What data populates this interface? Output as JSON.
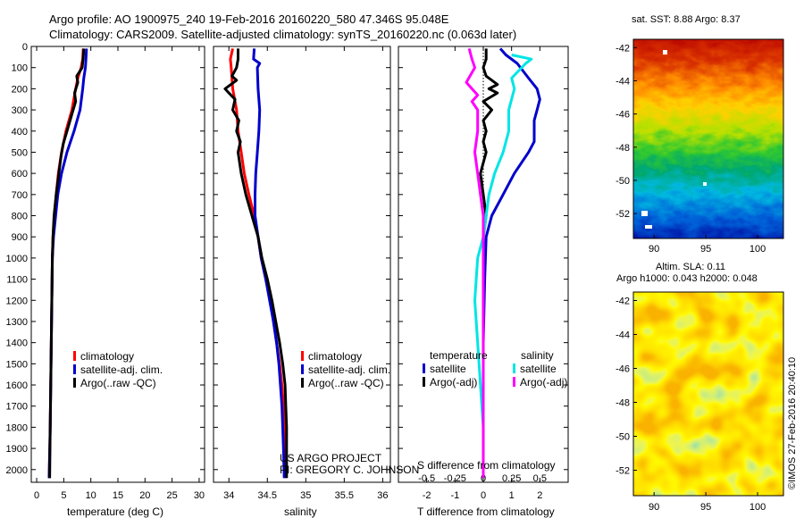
{
  "header": {
    "line1": "Argo profile: AO 1900975_240 19-Feb-2016 20160220_580 47.346S 95.048E",
    "line2": "Climatology: CARS2009. Satellite-adjusted climatology: synTS_20160220.nc (0.063d later)"
  },
  "depth_ticks": [
    0,
    100,
    200,
    300,
    400,
    500,
    600,
    700,
    800,
    900,
    1000,
    1100,
    1200,
    1300,
    1400,
    1500,
    1600,
    1700,
    1800,
    1900,
    2000
  ],
  "chart_data": [
    {
      "id": "temperature",
      "type": "line",
      "xlabel": "temperature (deg C)",
      "xlim": [
        -1,
        31
      ],
      "ylim": [
        2060,
        0
      ],
      "xticks": [
        0,
        5,
        10,
        15,
        20,
        25,
        30
      ],
      "legend": [
        "climatology",
        "satellite-adj. clim.",
        "Argo(..raw -QC)"
      ],
      "series": [
        {
          "name": "climatology",
          "color": "#ff0000",
          "points": [
            [
              8.6,
              10
            ],
            [
              8.5,
              60
            ],
            [
              8.2,
              100
            ],
            [
              7.6,
              150
            ],
            [
              7.2,
              200
            ],
            [
              6.5,
              300
            ],
            [
              5.4,
              400
            ],
            [
              4.6,
              500
            ],
            [
              4.0,
              600
            ],
            [
              3.6,
              700
            ],
            [
              3.3,
              800
            ],
            [
              3.0,
              900
            ],
            [
              2.9,
              1000
            ],
            [
              2.8,
              1200
            ],
            [
              2.7,
              1400
            ],
            [
              2.6,
              1600
            ],
            [
              2.5,
              1800
            ],
            [
              2.3,
              2040
            ]
          ]
        },
        {
          "name": "satellite-adj. clim.",
          "color": "#0000cc",
          "points": [
            [
              9.2,
              10
            ],
            [
              9.1,
              60
            ],
            [
              9.0,
              100
            ],
            [
              8.7,
              150
            ],
            [
              8.5,
              200
            ],
            [
              8.0,
              300
            ],
            [
              6.9,
              400
            ],
            [
              5.6,
              500
            ],
            [
              4.6,
              600
            ],
            [
              3.9,
              700
            ],
            [
              3.5,
              800
            ],
            [
              3.1,
              900
            ],
            [
              2.9,
              1000
            ],
            [
              2.8,
              1200
            ],
            [
              2.7,
              1400
            ],
            [
              2.6,
              1600
            ],
            [
              2.5,
              1800
            ],
            [
              2.3,
              2040
            ]
          ]
        },
        {
          "name": "Argo(..raw -QC)",
          "color": "#000000",
          "points": [
            [
              8.7,
              10
            ],
            [
              8.6,
              50
            ],
            [
              8.4,
              100
            ],
            [
              7.4,
              140
            ],
            [
              7.6,
              170
            ],
            [
              7.0,
              220
            ],
            [
              7.2,
              260
            ],
            [
              6.5,
              320
            ],
            [
              5.6,
              400
            ],
            [
              4.9,
              460
            ],
            [
              4.5,
              520
            ],
            [
              4.1,
              600
            ],
            [
              3.6,
              700
            ],
            [
              3.2,
              800
            ],
            [
              3.0,
              900
            ],
            [
              2.9,
              1000
            ],
            [
              2.8,
              1200
            ],
            [
              2.7,
              1400
            ],
            [
              2.6,
              1600
            ],
            [
              2.5,
              1800
            ],
            [
              2.4,
              2040
            ]
          ]
        }
      ]
    },
    {
      "id": "salinity",
      "type": "line",
      "xlabel": "salinity",
      "xlim": [
        33.8,
        36.1
      ],
      "ylim": [
        2060,
        0
      ],
      "xticks": [
        34,
        34.5,
        35,
        35.5,
        36
      ],
      "legend": [
        "climatology",
        "satellite-adj. clim.",
        "Argo(..raw -QC)"
      ],
      "annotation": [
        "US ARGO PROJECT",
        "PI: GREGORY C. JOHNSON"
      ],
      "series": [
        {
          "name": "climatology",
          "color": "#ff0000",
          "points": [
            [
              34.05,
              10
            ],
            [
              34.02,
              60
            ],
            [
              34.03,
              100
            ],
            [
              34.05,
              200
            ],
            [
              34.1,
              300
            ],
            [
              34.12,
              400
            ],
            [
              34.16,
              500
            ],
            [
              34.2,
              600
            ],
            [
              34.26,
              700
            ],
            [
              34.33,
              800
            ],
            [
              34.38,
              900
            ],
            [
              34.42,
              1000
            ],
            [
              34.48,
              1100
            ],
            [
              34.54,
              1200
            ],
            [
              34.58,
              1300
            ],
            [
              34.62,
              1400
            ],
            [
              34.66,
              1500
            ],
            [
              34.69,
              1600
            ],
            [
              34.71,
              1700
            ],
            [
              34.72,
              1800
            ],
            [
              34.73,
              1900
            ],
            [
              34.74,
              2040
            ]
          ]
        },
        {
          "name": "satellite-adj. clim.",
          "color": "#0000cc",
          "points": [
            [
              34.33,
              10
            ],
            [
              34.32,
              60
            ],
            [
              34.4,
              80
            ],
            [
              34.37,
              100
            ],
            [
              34.38,
              200
            ],
            [
              34.4,
              300
            ],
            [
              34.39,
              400
            ],
            [
              34.37,
              500
            ],
            [
              34.35,
              600
            ],
            [
              34.34,
              700
            ],
            [
              34.34,
              800
            ],
            [
              34.38,
              900
            ],
            [
              34.42,
              1000
            ],
            [
              34.48,
              1100
            ],
            [
              34.53,
              1200
            ],
            [
              34.58,
              1300
            ],
            [
              34.62,
              1400
            ],
            [
              34.65,
              1500
            ],
            [
              34.67,
              1600
            ],
            [
              34.69,
              1700
            ],
            [
              34.7,
              1800
            ],
            [
              34.71,
              1900
            ],
            [
              34.72,
              2040
            ]
          ]
        },
        {
          "name": "Argo(..raw -QC)",
          "color": "#000000",
          "points": [
            [
              34.12,
              10
            ],
            [
              34.12,
              60
            ],
            [
              34.1,
              100
            ],
            [
              34.04,
              140
            ],
            [
              34.1,
              160
            ],
            [
              33.95,
              200
            ],
            [
              34.0,
              220
            ],
            [
              34.08,
              250
            ],
            [
              34.05,
              300
            ],
            [
              34.13,
              350
            ],
            [
              34.1,
              400
            ],
            [
              34.15,
              450
            ],
            [
              34.12,
              500
            ],
            [
              34.16,
              600
            ],
            [
              34.22,
              700
            ],
            [
              34.3,
              800
            ],
            [
              34.38,
              900
            ],
            [
              34.43,
              1000
            ],
            [
              34.5,
              1100
            ],
            [
              34.56,
              1200
            ],
            [
              34.61,
              1300
            ],
            [
              34.66,
              1400
            ],
            [
              34.7,
              1500
            ],
            [
              34.73,
              1600
            ],
            [
              34.74,
              1700
            ],
            [
              34.75,
              1800
            ],
            [
              34.75,
              1900
            ],
            [
              34.75,
              2040
            ]
          ]
        }
      ]
    },
    {
      "id": "difference",
      "type": "line",
      "xlabel": "T difference from climatology",
      "secondary_label": "S difference from climatology",
      "xlim": [
        -3,
        3
      ],
      "ylim": [
        2060,
        0
      ],
      "xticks": [
        -2,
        -1,
        0,
        1,
        2
      ],
      "secondary_ticks": [
        "-0.5",
        "-0.25",
        "0",
        "0.25",
        "0.5"
      ],
      "legend_groups": [
        {
          "title": "temperature",
          "items": [
            "satellite",
            "Argo(-adj)"
          ]
        },
        {
          "title": "salinity",
          "items": [
            "satellite",
            "Argo(-adj)"
          ]
        }
      ],
      "series": [
        {
          "name": "temperature satellite",
          "color": "#0000cc",
          "points": [
            [
              0.6,
              10
            ],
            [
              0.8,
              40
            ],
            [
              1.2,
              80
            ],
            [
              1.6,
              150
            ],
            [
              1.9,
              200
            ],
            [
              2.0,
              250
            ],
            [
              1.9,
              300
            ],
            [
              1.8,
              350
            ],
            [
              1.8,
              450
            ],
            [
              1.6,
              500
            ],
            [
              1.1,
              600
            ],
            [
              0.7,
              700
            ],
            [
              0.3,
              800
            ],
            [
              0.1,
              900
            ],
            [
              0.05,
              1100
            ],
            [
              0.0,
              1400
            ],
            [
              0.0,
              2040
            ]
          ]
        },
        {
          "name": "temperature Argo(-adj)",
          "color": "#000000",
          "points": [
            [
              0.1,
              10
            ],
            [
              0.1,
              60
            ],
            [
              0.0,
              100
            ],
            [
              0.1,
              140
            ],
            [
              0.5,
              180
            ],
            [
              0.2,
              200
            ],
            [
              0.5,
              220
            ],
            [
              0.0,
              260
            ],
            [
              0.3,
              300
            ],
            [
              0.0,
              350
            ],
            [
              0.1,
              400
            ],
            [
              0.0,
              450
            ],
            [
              0.1,
              500
            ],
            [
              -0.1,
              600
            ],
            [
              0.0,
              700
            ],
            [
              0.1,
              800
            ],
            [
              0.0,
              900
            ],
            [
              0.0,
              1200
            ],
            [
              0.0,
              2040
            ]
          ]
        },
        {
          "name": "salinity satellite",
          "color": "#00e5e5",
          "points": [
            [
              1.0,
              40
            ],
            [
              1.7,
              60
            ],
            [
              1.5,
              80
            ],
            [
              1.0,
              150
            ],
            [
              1.1,
              200
            ],
            [
              0.9,
              300
            ],
            [
              0.9,
              400
            ],
            [
              0.7,
              500
            ],
            [
              0.4,
              600
            ],
            [
              0.2,
              700
            ],
            [
              0.1,
              800
            ],
            [
              0.0,
              900
            ],
            [
              -0.2,
              1000
            ],
            [
              -0.3,
              1200
            ],
            [
              -0.2,
              1400
            ],
            [
              -0.1,
              1600
            ],
            [
              0.0,
              1800
            ],
            [
              0.0,
              2040
            ]
          ]
        },
        {
          "name": "salinity Argo(-adj)",
          "color": "#ff00ff",
          "points": [
            [
              -0.5,
              10
            ],
            [
              -0.4,
              60
            ],
            [
              -0.3,
              100
            ],
            [
              -0.6,
              170
            ],
            [
              -0.4,
              200
            ],
            [
              -0.2,
              230
            ],
            [
              -0.4,
              260
            ],
            [
              -0.2,
              300
            ],
            [
              -0.2,
              400
            ],
            [
              -0.3,
              500
            ],
            [
              -0.2,
              600
            ],
            [
              -0.1,
              700
            ],
            [
              0.0,
              800
            ],
            [
              0.0,
              1200
            ],
            [
              0.0,
              2040
            ]
          ]
        }
      ]
    },
    {
      "id": "sst_map",
      "type": "heatmap",
      "title": "sat. SST: 8.88 Argo: 8.37",
      "xticks": [
        90,
        95,
        100
      ],
      "yticks": [
        -42,
        -44,
        -46,
        -48,
        -50,
        -52
      ],
      "xlim": [
        88,
        102.5
      ],
      "ylim": [
        -53.5,
        -41.5
      ]
    },
    {
      "id": "sla_map",
      "type": "heatmap",
      "title": "Altim. SLA: 0.11",
      "subtitle": "Argo h1000: 0.043 h2000: 0.048",
      "xticks": [
        90,
        95,
        100
      ],
      "yticks": [
        -42,
        -44,
        -46,
        -48,
        -50,
        -52
      ],
      "xlim": [
        88,
        102.5
      ],
      "ylim": [
        -53.5,
        -41.5
      ]
    }
  ],
  "credit": "©IMOS 27-Feb-2016 20:40:10"
}
